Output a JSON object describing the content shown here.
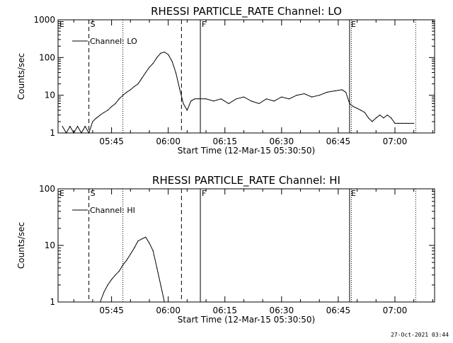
{
  "footer": {
    "timestamp": "27-Oct-2021 03:44"
  },
  "chart_data": [
    {
      "type": "line",
      "title": "RHESSI PARTICLE_RATE Channel: LO",
      "xlabel": "Start Time (12-Mar-15 05:30:50)",
      "ylabel": "Counts/sec",
      "yscale": "log",
      "ylim": [
        1,
        1000
      ],
      "xlim": [
        "05:30:50",
        "07:10:30"
      ],
      "x_ticks": [
        "05:45",
        "06:00",
        "06:15",
        "06:30",
        "06:45",
        "07:00"
      ],
      "y_ticks": [
        "1",
        "10",
        "100",
        "1000"
      ],
      "legend": {
        "label": "Channel: LO",
        "placement": "top-left"
      },
      "markers": [
        {
          "label": "E",
          "time": "05:30:50",
          "style": "solid"
        },
        {
          "label": "S",
          "time": "05:39:00",
          "style": "dashed"
        },
        {
          "label": "",
          "time": "05:48:00",
          "style": "dotted"
        },
        {
          "label": "",
          "time": "06:03:30",
          "style": "dashed"
        },
        {
          "label": "F",
          "time": "06:08:30",
          "style": "solid"
        },
        {
          "label": "E",
          "time": "06:48:00",
          "style": "solid"
        },
        {
          "label": "",
          "time": "06:48:30",
          "style": "dotted"
        },
        {
          "label": "",
          "time": "07:05:30",
          "style": "dotted"
        }
      ],
      "series": [
        {
          "name": "Channel: LO",
          "x": [
            "05:32:00",
            "05:33:00",
            "05:34:00",
            "05:35:00",
            "05:36:00",
            "05:37:00",
            "05:38:00",
            "05:39:00",
            "05:40:00",
            "05:41:00",
            "05:42:00",
            "05:43:00",
            "05:44:00",
            "05:45:00",
            "05:46:00",
            "05:47:00",
            "05:48:00",
            "05:49:00",
            "05:50:00",
            "05:51:00",
            "05:52:00",
            "05:53:00",
            "05:54:00",
            "05:55:00",
            "05:56:00",
            "05:57:00",
            "05:58:00",
            "05:59:00",
            "06:00:00",
            "06:01:00",
            "06:02:00",
            "06:03:00",
            "06:04:00",
            "06:05:00",
            "06:06:00",
            "06:07:00",
            "06:08:00",
            "06:10:00",
            "06:12:00",
            "06:14:00",
            "06:16:00",
            "06:18:00",
            "06:20:00",
            "06:22:00",
            "06:24:00",
            "06:26:00",
            "06:28:00",
            "06:30:00",
            "06:32:00",
            "06:34:00",
            "06:36:00",
            "06:38:00",
            "06:40:00",
            "06:42:00",
            "06:44:00",
            "06:46:00",
            "06:47:00",
            "06:48:00",
            "06:49:00",
            "06:50:00",
            "06:51:00",
            "06:52:00",
            "06:53:00",
            "06:54:00",
            "06:55:00",
            "06:56:00",
            "06:57:00",
            "06:58:00",
            "06:59:00",
            "07:00:00",
            "07:01:00",
            "07:02:00",
            "07:03:00",
            "07:05:00"
          ],
          "y": [
            1.5,
            1,
            1.5,
            1,
            1.5,
            1,
            1.5,
            1,
            2,
            2.5,
            3,
            3.5,
            4,
            5,
            6,
            8,
            10,
            12,
            14,
            17,
            20,
            28,
            40,
            55,
            70,
            100,
            130,
            140,
            120,
            80,
            40,
            15,
            6,
            4,
            7,
            8,
            8,
            8,
            7,
            8,
            6,
            8,
            9,
            7,
            6,
            8,
            7,
            9,
            8,
            10,
            11,
            9,
            10,
            12,
            13,
            14,
            12,
            6,
            5,
            4.5,
            4,
            3.5,
            2.5,
            2,
            2.5,
            3,
            2.5,
            3,
            2.5,
            1.8,
            1.8,
            1.8,
            1.8,
            1.8
          ]
        }
      ]
    },
    {
      "type": "line",
      "title": "RHESSI PARTICLE_RATE Channel: HI",
      "xlabel": "Start Time (12-Mar-15 05:30:50)",
      "ylabel": "Counts/sec",
      "yscale": "log",
      "ylim": [
        1,
        100
      ],
      "xlim": [
        "05:30:50",
        "07:10:30"
      ],
      "x_ticks": [
        "05:45",
        "06:00",
        "06:15",
        "06:30",
        "06:45",
        "07:00"
      ],
      "y_ticks": [
        "1",
        "10",
        "100"
      ],
      "legend": {
        "label": "Channel: HI",
        "placement": "top-left"
      },
      "markers": [
        {
          "label": "E",
          "time": "05:30:50",
          "style": "solid"
        },
        {
          "label": "S",
          "time": "05:39:00",
          "style": "dashed"
        },
        {
          "label": "",
          "time": "05:48:00",
          "style": "dotted"
        },
        {
          "label": "",
          "time": "06:03:30",
          "style": "dashed"
        },
        {
          "label": "F",
          "time": "06:08:30",
          "style": "solid"
        },
        {
          "label": "E",
          "time": "06:48:00",
          "style": "solid"
        },
        {
          "label": "",
          "time": "06:48:30",
          "style": "dotted"
        },
        {
          "label": "",
          "time": "07:05:30",
          "style": "dotted"
        }
      ],
      "series": [
        {
          "name": "Channel: HI",
          "x": [
            "05:42:00",
            "05:43:00",
            "05:44:00",
            "05:45:00",
            "05:46:00",
            "05:47:00",
            "05:48:00",
            "05:49:00",
            "05:50:00",
            "05:51:00",
            "05:52:00",
            "05:53:00",
            "05:54:00",
            "05:55:00",
            "05:56:00",
            "05:57:00",
            "05:58:00",
            "05:59:00"
          ],
          "y": [
            1,
            1.5,
            2,
            2.5,
            3,
            3.5,
            4.5,
            5.5,
            7,
            9,
            12,
            13,
            14,
            11,
            8,
            4,
            2,
            1
          ]
        }
      ]
    }
  ]
}
